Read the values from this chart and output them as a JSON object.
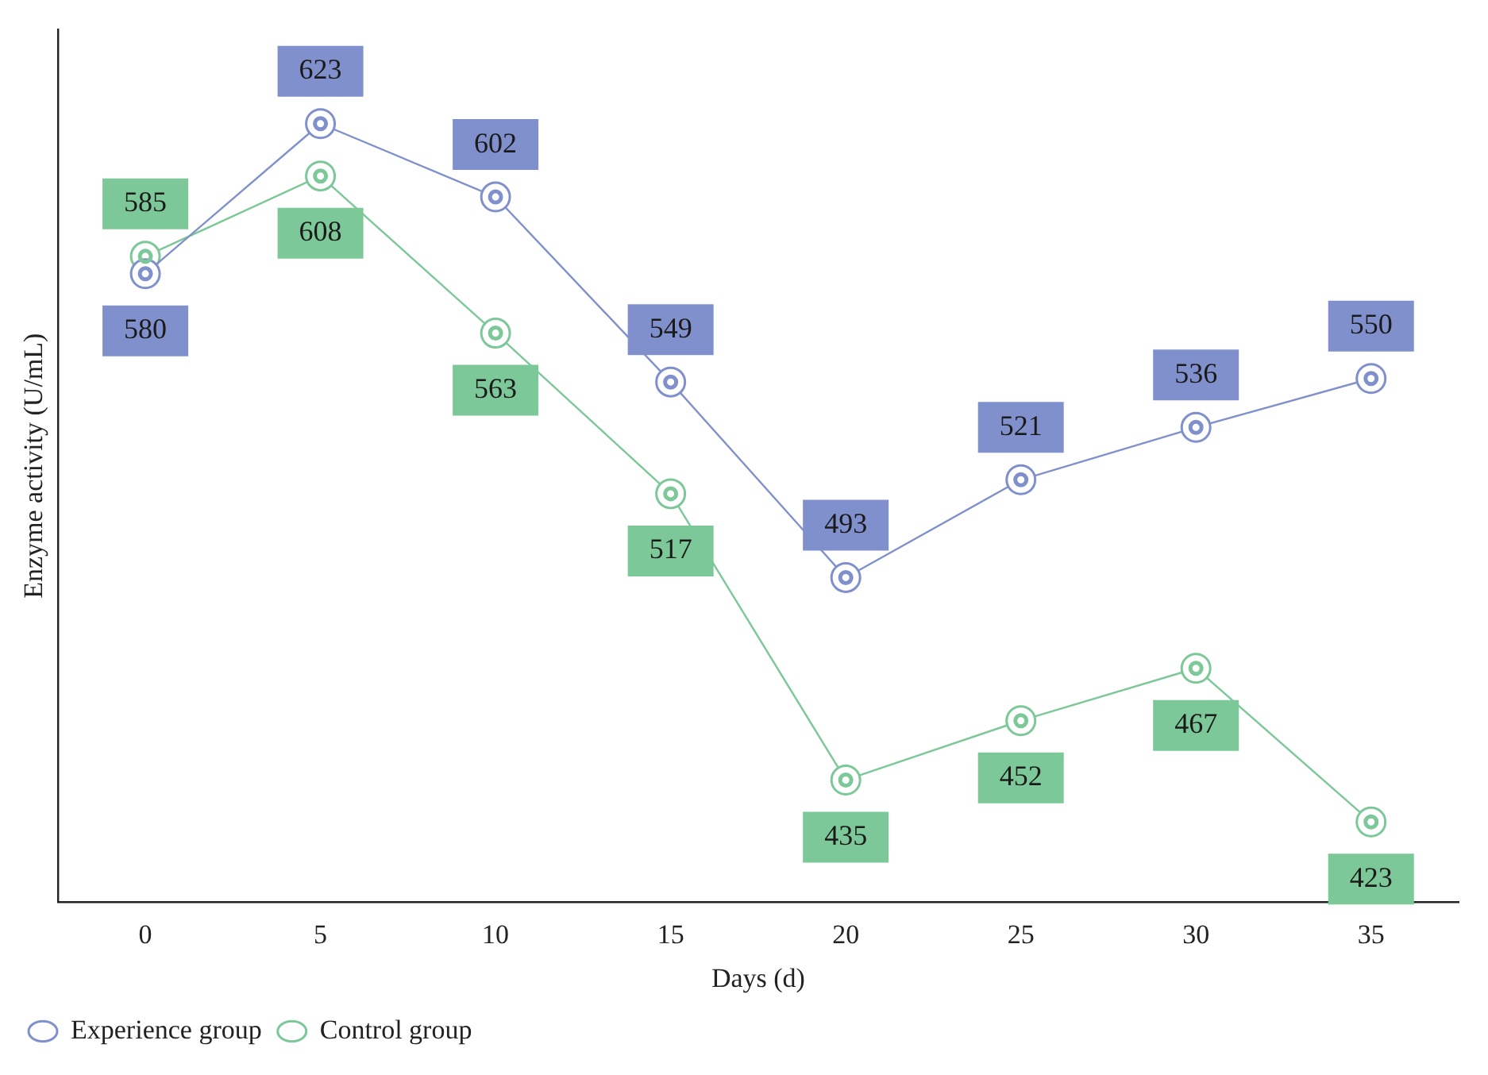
{
  "chart_data": {
    "type": "line",
    "xlabel": "Days (d)",
    "ylabel": "Enzyme activity (U/mL)",
    "x": [
      0,
      5,
      10,
      15,
      20,
      25,
      30,
      35
    ],
    "xlim": [
      -2.5,
      37.5
    ],
    "xticks": [
      0,
      5,
      10,
      15,
      20,
      25,
      30,
      35
    ],
    "series": [
      {
        "name": "Experience group",
        "color": "#8090cc",
        "values": [
          580,
          623,
          602,
          549,
          493,
          521,
          536,
          550
        ]
      },
      {
        "name": "Control group",
        "color": "#7cc898",
        "values": [
          585,
          608,
          563,
          517,
          435,
          452,
          467,
          423
        ]
      }
    ],
    "data_labels": true,
    "grid": false,
    "legend": "bottom left",
    "marker": "circle",
    "line_style": "solid"
  }
}
